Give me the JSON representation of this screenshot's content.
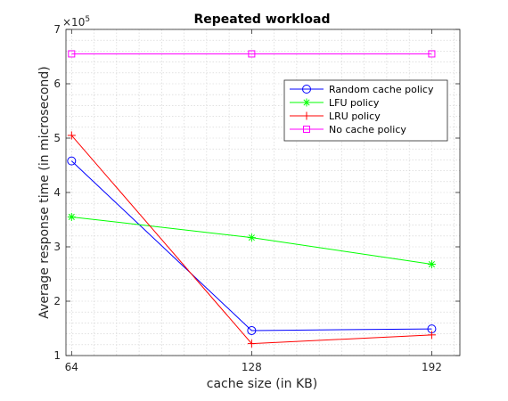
{
  "chart_data": {
    "type": "line",
    "title": "Repeated workload",
    "xlabel": "cache size (in KB)",
    "ylabel": "Average response time (in microsecond)",
    "exponent_label": "×10",
    "exponent_power": "5",
    "x": [
      64,
      128,
      192
    ],
    "xlim": [
      62,
      202
    ],
    "ylim": [
      1,
      7
    ],
    "y_unit_multiplier": 100000,
    "x_ticks": [
      "64",
      "128",
      "192"
    ],
    "y_ticks": [
      "1",
      "2",
      "3",
      "4",
      "5",
      "6",
      "7"
    ],
    "grid": true,
    "legend_position": "top-right",
    "series": [
      {
        "name": "Random cache policy",
        "values": [
          4.58,
          1.46,
          1.49
        ],
        "color": "#0000ff",
        "marker": "circle"
      },
      {
        "name": "LFU policy",
        "values": [
          3.55,
          3.17,
          2.68
        ],
        "color": "#00ff00",
        "marker": "star"
      },
      {
        "name": "LRU policy",
        "values": [
          5.05,
          1.22,
          1.38
        ],
        "color": "#ff0000",
        "marker": "plus"
      },
      {
        "name": "No cache policy",
        "values": [
          6.55,
          6.55,
          6.55
        ],
        "color": "#ff00ff",
        "marker": "square"
      }
    ]
  }
}
